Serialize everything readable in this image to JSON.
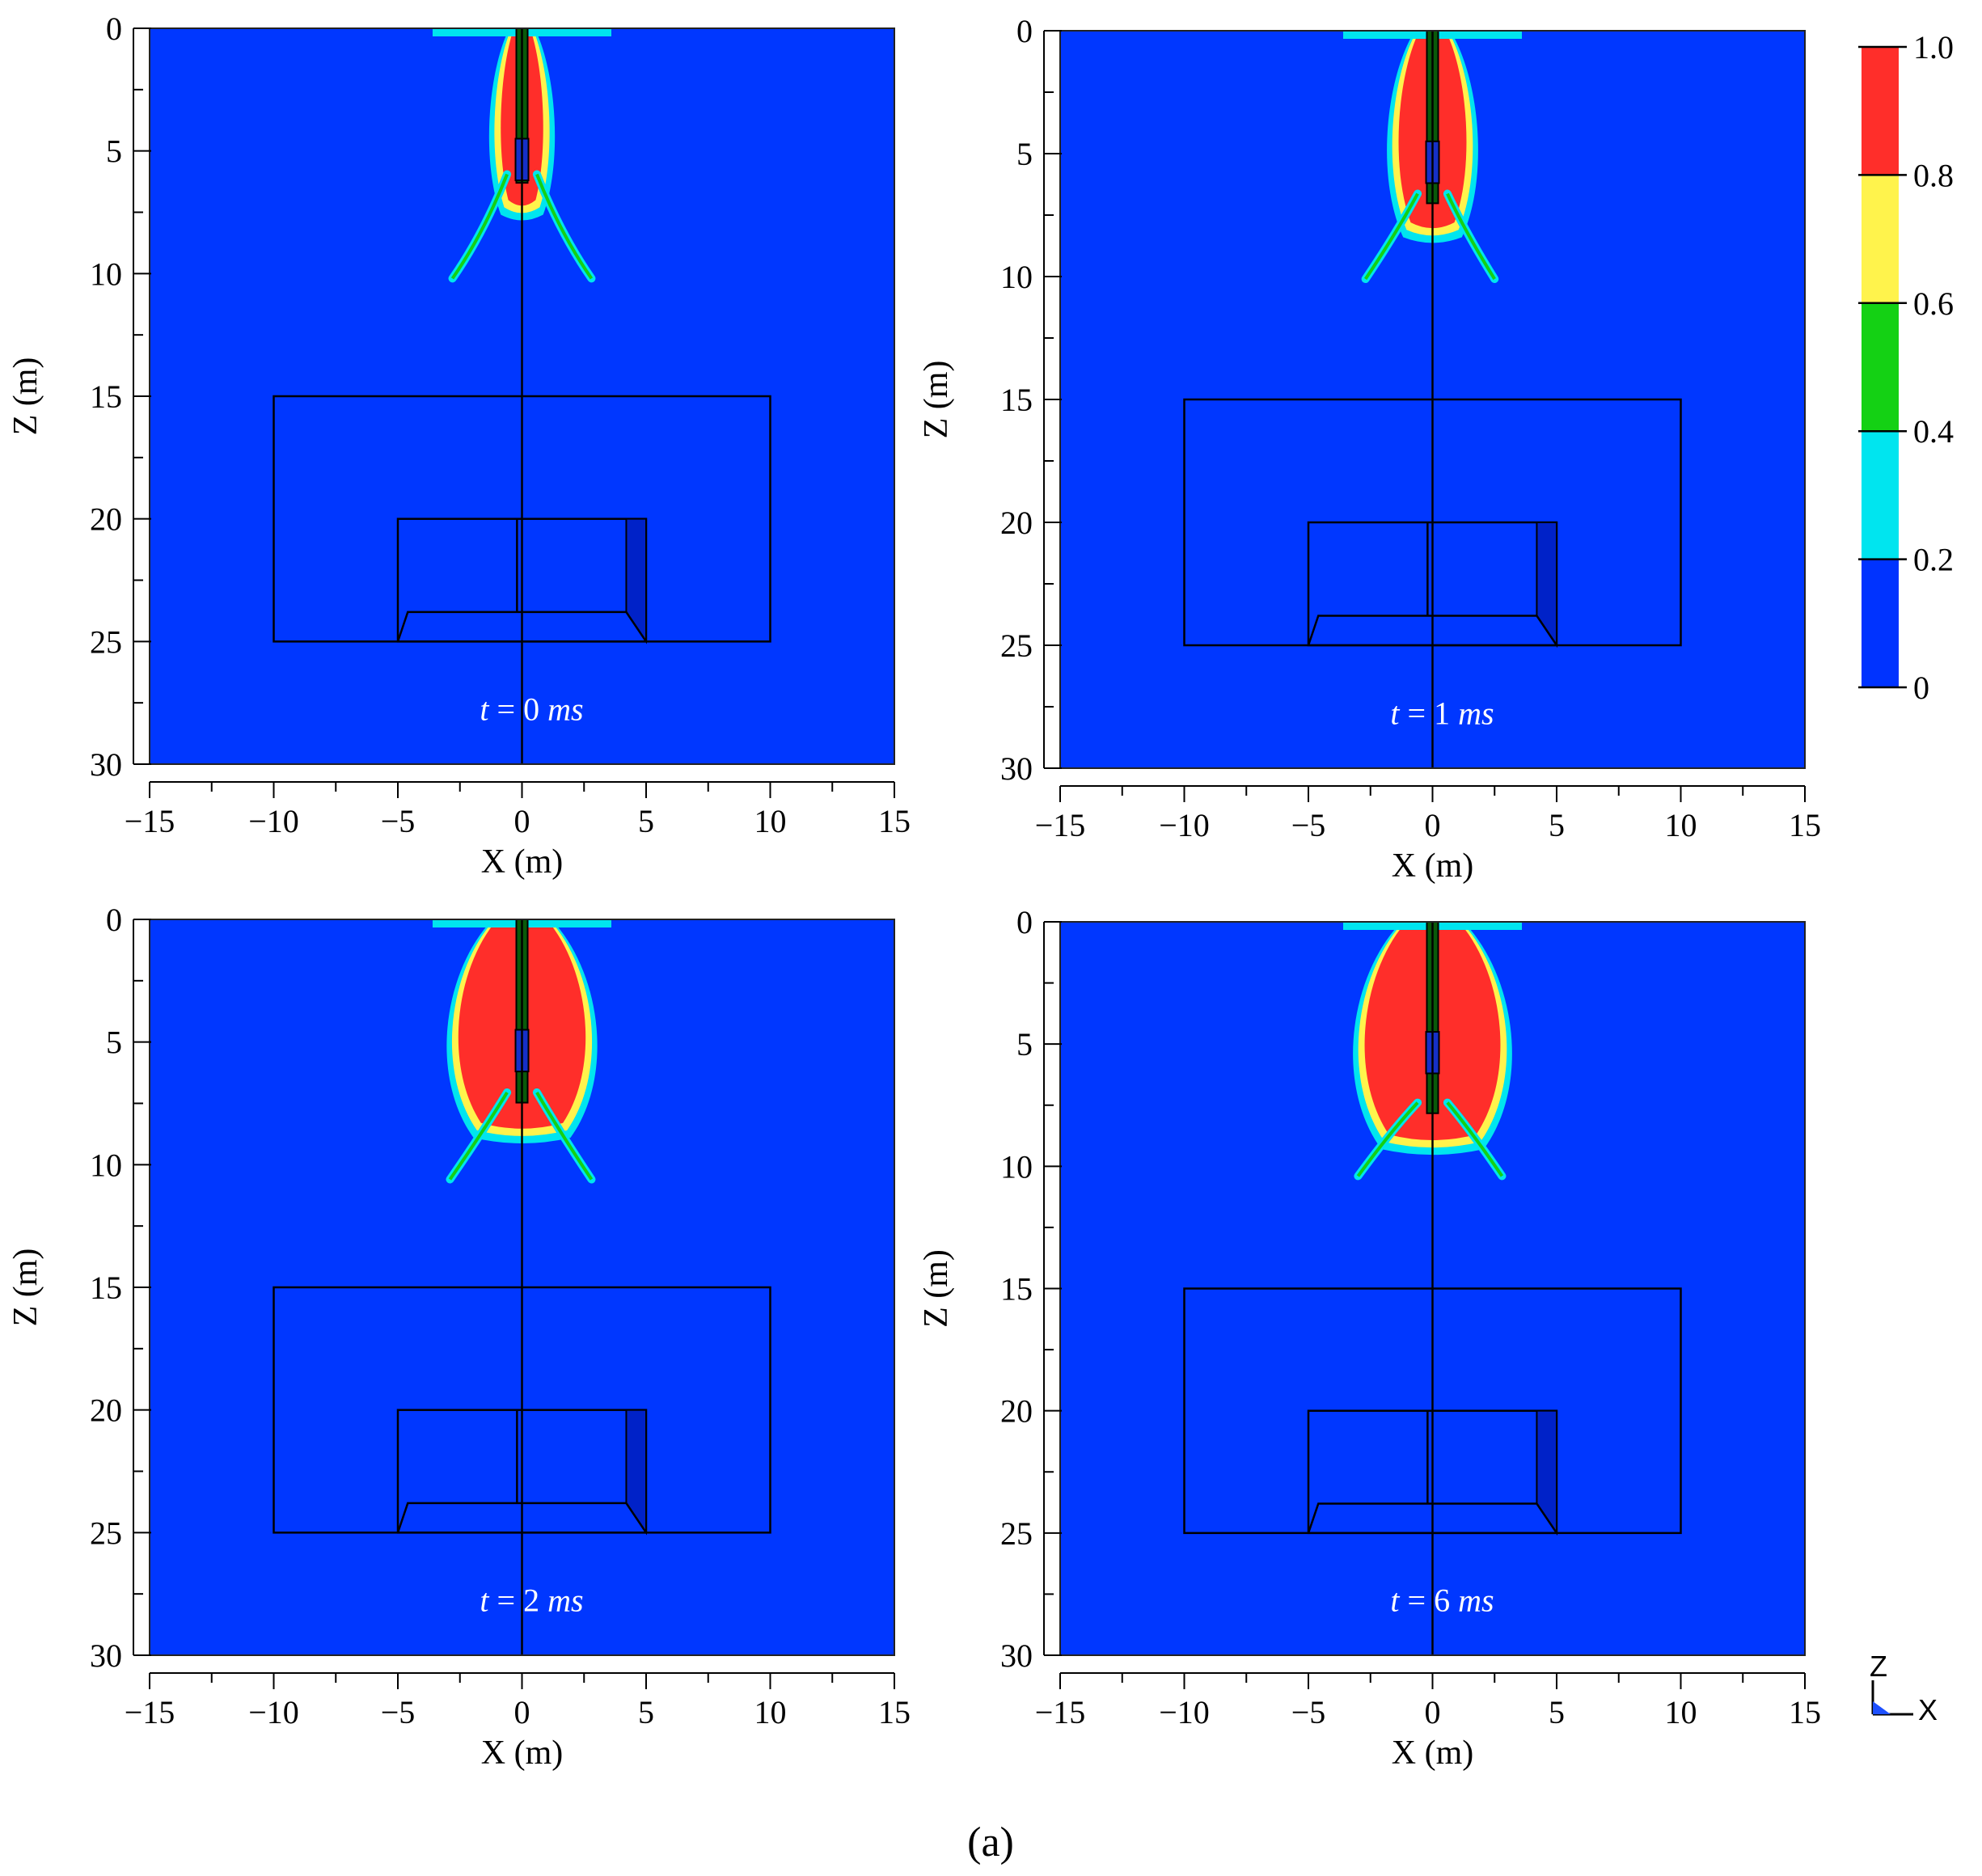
{
  "chart_data": {
    "type": "heatmap",
    "caption": "(a)",
    "xlabel": "X (m)",
    "ylabel": "Z (m)",
    "xlim": [
      -15,
      15
    ],
    "ylim": [
      0,
      30
    ],
    "y_inverted": true,
    "xticks": [
      "−15",
      "−10",
      "−5",
      "0",
      "5",
      "10",
      "15"
    ],
    "yticks": [
      "0",
      "5",
      "10",
      "15",
      "20",
      "25",
      "30"
    ],
    "xtick_values": [
      -15,
      -10,
      -5,
      0,
      5,
      10,
      15
    ],
    "ytick_values": [
      0,
      5,
      10,
      15,
      20,
      25,
      30
    ],
    "colorbar": {
      "ticks": [
        "0",
        "0.2",
        "0.4",
        "0.6",
        "0.8",
        "1.0"
      ],
      "levels": [
        0,
        0.2,
        0.4,
        0.6,
        0.8,
        1.0
      ],
      "colors": [
        "#0033ff",
        "#00e5ef",
        "#14d114",
        "#fff34c",
        "#ff2e2a"
      ]
    },
    "background_color": "#0037ff",
    "panels": [
      {
        "time_label": "t = 0 ms",
        "t_prefix": "t",
        "t_value": "= 0",
        "t_unit": "ms",
        "time_ms": 0,
        "damage_core": {
          "halfwidth": 1.0,
          "depth": 7.0
        },
        "crack_tips": [
          [
            -2.8,
            10.2
          ],
          [
            2.8,
            10.2
          ]
        ]
      },
      {
        "time_label": "t = 1 ms",
        "t_prefix": "t",
        "t_value": "= 1",
        "t_unit": "ms",
        "time_ms": 1,
        "damage_core": {
          "halfwidth": 1.6,
          "depth": 7.8
        },
        "crack_tips": [
          [
            -2.7,
            10.1
          ],
          [
            2.5,
            10.1
          ]
        ]
      },
      {
        "time_label": "t = 2 ms",
        "t_prefix": "t",
        "t_value": "= 2",
        "t_unit": "ms",
        "time_ms": 2,
        "damage_core": {
          "halfwidth": 3.0,
          "depth": 8.3
        },
        "crack_tips": [
          [
            -2.9,
            10.6
          ],
          [
            2.8,
            10.6
          ]
        ]
      },
      {
        "time_label": "t = 6 ms",
        "t_prefix": "t",
        "t_value": "= 6",
        "t_unit": "ms",
        "time_ms": 6,
        "damage_core": {
          "halfwidth": 3.2,
          "depth": 8.7
        },
        "crack_tips": [
          [
            -3.0,
            10.4
          ],
          [
            2.8,
            10.4
          ]
        ]
      }
    ],
    "structures": {
      "outer_box": {
        "x": [
          -10,
          10
        ],
        "z": [
          15,
          25
        ]
      },
      "inner_box": {
        "x": [
          -5,
          5
        ],
        "z": [
          20,
          25
        ]
      },
      "center_line_x": 0
    },
    "axis_triad": {
      "z_label": "Z",
      "x_label": "X"
    }
  }
}
